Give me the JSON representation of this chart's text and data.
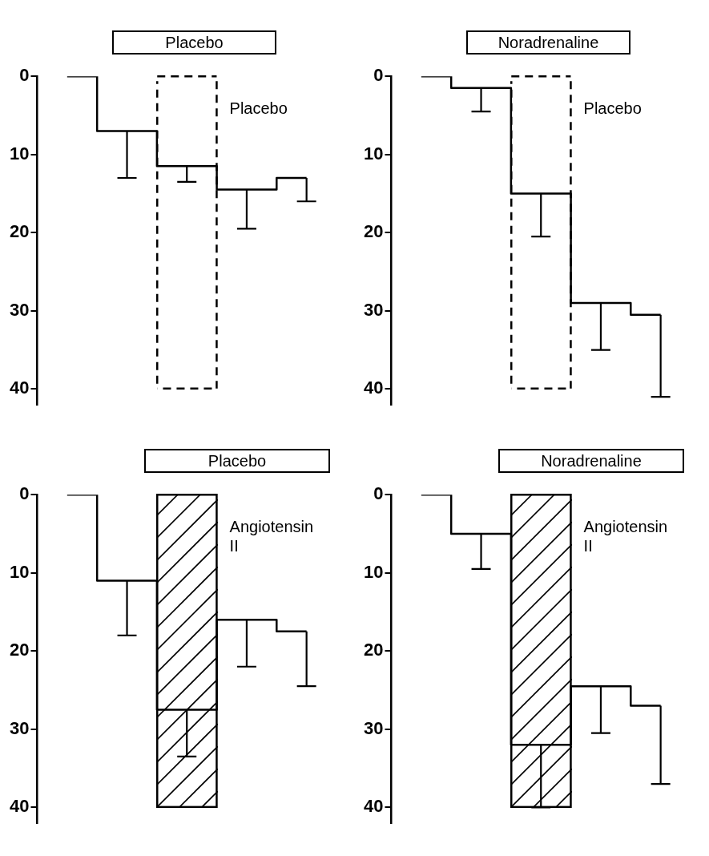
{
  "chart_data": [
    {
      "type": "step",
      "title": "Placebo",
      "categories": [
        null,
        null,
        null,
        null,
        null
      ],
      "ylim": [
        42,
        0
      ],
      "yticks": [
        0,
        10,
        20,
        30,
        40
      ],
      "tick_labels": "y",
      "grid": false,
      "series": [
        {
          "color": "#000000",
          "values": [
            0,
            7,
            11.5,
            14.5,
            13
          ],
          "errors": [
            null,
            [
              7,
              13
            ],
            [
              11.5,
              13.5
            ],
            [
              14.5,
              19.5
            ],
            [
              13,
              16
            ]
          ]
        }
      ],
      "annotations": [
        "Placebo"
      ]
    },
    {
      "type": "step",
      "title": "Noradrenaline",
      "categories": [
        null,
        null,
        null,
        null,
        null
      ],
      "ylim": [
        42,
        0
      ],
      "yticks": [
        0,
        10,
        20,
        30,
        40
      ],
      "tick_labels": "y",
      "grid": false,
      "series": [
        {
          "color": "#000000",
          "values": [
            0,
            1.5,
            15,
            29,
            30.5
          ],
          "errors": [
            null,
            [
              1.5,
              4.5
            ],
            [
              15,
              20.5
            ],
            [
              29,
              35
            ],
            [
              30.5,
              41
            ]
          ]
        }
      ],
      "annotations": [
        "Placebo"
      ]
    },
    {
      "type": "step",
      "title": "Placebo",
      "categories": [
        null,
        null,
        null,
        null,
        null
      ],
      "ylim": [
        42,
        0
      ],
      "yticks": [
        0,
        10,
        20,
        30,
        40
      ],
      "tick_labels": "y",
      "grid": false,
      "series": [
        {
          "color": "#000000",
          "values": [
            0,
            11,
            27.5,
            16,
            17.5
          ],
          "errors": [
            null,
            [
              11,
              18
            ],
            [
              27.5,
              33.5
            ],
            [
              16,
              22
            ],
            [
              17.5,
              24.5
            ]
          ]
        }
      ],
      "annotations": [
        "Angiotensin II"
      ]
    },
    {
      "type": "step",
      "title": "Noradrenaline",
      "categories": [
        null,
        null,
        null,
        null,
        null
      ],
      "ylim": [
        42,
        0
      ],
      "yticks": [
        0,
        10,
        20,
        30,
        40
      ],
      "tick_labels": "y",
      "grid": false,
      "series": [
        {
          "color": "#000000",
          "values": [
            0,
            5,
            32,
            24.5,
            27
          ],
          "errors": [
            null,
            [
              5,
              9.5
            ],
            [
              32,
              40
            ],
            [
              24.5,
              30.5
            ],
            [
              27,
              37
            ]
          ]
        }
      ],
      "annotations": [
        "Angiotensin II"
      ]
    }
  ]
}
